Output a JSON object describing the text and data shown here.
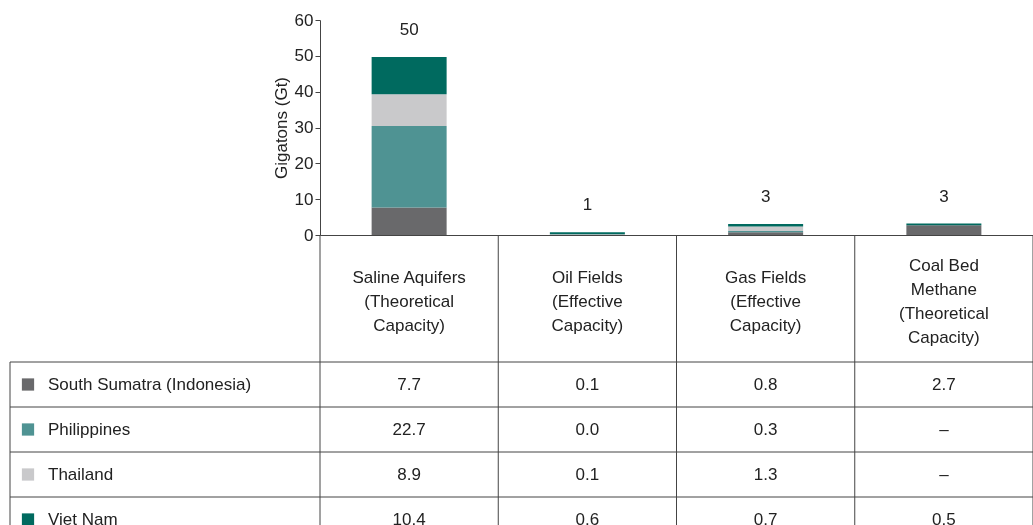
{
  "chart_data": {
    "type": "bar",
    "stacked": true,
    "ylabel": "Gigatons (Gt)",
    "categories": [
      "Saline Aquifers (Theoretical Capacity)",
      "Oil Fields (Effective Capacity)",
      "Gas Fields (Effective Capacity)",
      "Coal Bed Methane (Theoretical Capacity)"
    ],
    "series": [
      {
        "name": "South Sumatra (Indonesia)",
        "color": "#69696b",
        "values": [
          7.7,
          0.1,
          0.8,
          2.7
        ],
        "value_labels": [
          "7.7",
          "0.1",
          "0.8",
          "2.7"
        ]
      },
      {
        "name": "Philippines",
        "color": "#4f9393",
        "values": [
          22.7,
          0.0,
          0.3,
          null
        ],
        "value_labels": [
          "22.7",
          "0.0",
          "0.3",
          "–"
        ]
      },
      {
        "name": "Thailand",
        "color": "#c9c9cb",
        "values": [
          8.9,
          0.1,
          1.3,
          null
        ],
        "value_labels": [
          "8.9",
          "0.1",
          "1.3",
          "–"
        ]
      },
      {
        "name": "Viet Nam",
        "color": "#006a5f",
        "values": [
          10.4,
          0.6,
          0.7,
          0.5
        ],
        "value_labels": [
          "10.4",
          "0.6",
          "0.7",
          "0.5"
        ]
      }
    ],
    "totals": [
      "50",
      "1",
      "3",
      "3"
    ],
    "ylim": [
      0,
      60
    ],
    "yticks": [
      0,
      10,
      20,
      30,
      40,
      50,
      60
    ],
    "grid": false,
    "legend": "bottom"
  }
}
